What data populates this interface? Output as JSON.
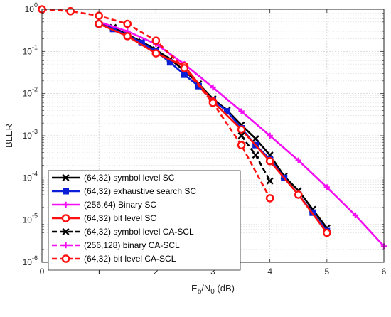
{
  "chart_data": {
    "type": "line",
    "x_scale": "linear",
    "y_scale": "log",
    "xlim": [
      0,
      6
    ],
    "ylim": [
      1e-06,
      1
    ],
    "xticks": [
      0,
      1,
      2,
      3,
      4,
      5,
      6
    ],
    "xtick_labels": [
      "0",
      "1",
      "2",
      "3",
      "4",
      "5",
      "6"
    ],
    "yticks": [
      1e-06,
      1e-05,
      0.0001,
      0.001,
      0.01,
      0.1,
      1
    ],
    "ytick_labels": [
      {
        "base": "10",
        "exp": "-6"
      },
      {
        "base": "10",
        "exp": "-5"
      },
      {
        "base": "10",
        "exp": "-4"
      },
      {
        "base": "10",
        "exp": "-3"
      },
      {
        "base": "10",
        "exp": "-2"
      },
      {
        "base": "10",
        "exp": "-1"
      },
      {
        "base": "10",
        "exp": "0"
      }
    ],
    "xlabel": {
      "main": "E",
      "sub1": "b",
      "mid": "/N",
      "sub2": "0",
      "tail": " (dB)"
    },
    "ylabel": "BLER",
    "grid": true,
    "legend_position": "bottom-left",
    "series": [
      {
        "name": "(64,32) symbol level SC",
        "color": "#000000",
        "dash": "solid",
        "marker": "x",
        "x": [
          1,
          1.25,
          1.5,
          1.75,
          2,
          2.25,
          2.5,
          2.75,
          3,
          3.25,
          3.5,
          3.75,
          4,
          4.25,
          4.5,
          4.75,
          5
        ],
        "y": [
          0.45,
          0.37,
          0.25,
          0.17,
          0.11,
          0.065,
          0.035,
          0.017,
          0.0075,
          0.004,
          0.0018,
          0.00085,
          0.00035,
          0.00011,
          5e-05,
          1.8e-05,
          6.5e-06
        ]
      },
      {
        "name": "(64,32) exhaustive search SC",
        "color": "#0a1fd6",
        "dash": "solid",
        "marker": "square",
        "x": [
          1,
          1.25,
          1.5,
          1.75,
          2,
          2.25,
          2.5,
          2.75,
          3,
          3.25,
          3.5,
          3.75,
          4,
          4.25,
          4.5,
          4.75,
          5
        ],
        "y": [
          0.45,
          0.34,
          0.24,
          0.16,
          0.1,
          0.055,
          0.028,
          0.015,
          0.007,
          0.0038,
          0.0015,
          0.0006,
          0.00028,
          0.0001,
          4e-05,
          1.5e-05,
          5.5e-06
        ]
      },
      {
        "name": "(256,64) Binary SC",
        "color": "#f210f2",
        "dash": "solid",
        "marker": "plus",
        "x": [
          1,
          1.5,
          2,
          2.5,
          3,
          3.5,
          4,
          4.5,
          5,
          5.5,
          6
        ],
        "y": [
          0.5,
          0.3,
          0.15,
          0.05,
          0.014,
          0.0038,
          0.001,
          0.00026,
          6e-05,
          1.3e-05,
          2.4e-06
        ]
      },
      {
        "name": "(64,32) bit level SC",
        "color": "#ff1010",
        "dash": "solid",
        "marker": "circle",
        "x": [
          1,
          1.5,
          2,
          2.5,
          3,
          3.5,
          4,
          4.5,
          5
        ],
        "y": [
          0.45,
          0.23,
          0.09,
          0.045,
          0.0065,
          0.0014,
          0.00025,
          4e-05,
          5e-06
        ]
      },
      {
        "name": "(64,32) symbol level CA-SCL",
        "color": "#000000",
        "dash": "dashed",
        "marker": "x",
        "x": [
          3.5,
          3.75,
          4
        ],
        "y": [
          0.001,
          0.00035,
          8.5e-05
        ]
      },
      {
        "name": "(256,128) binary CA-SCL",
        "color": "#f210f2",
        "dash": "dashed",
        "marker": "plus",
        "x": [],
        "y": []
      },
      {
        "name": "(64,32) bit level CA-SCL",
        "color": "#ff1010",
        "dash": "dashed",
        "marker": "circle",
        "x": [
          0,
          0.5,
          1,
          1.5,
          2,
          2.5,
          3,
          3.5,
          4
        ],
        "y": [
          1,
          0.9,
          0.7,
          0.45,
          0.18,
          0.04,
          0.006,
          0.0006,
          3.3e-05
        ]
      }
    ]
  }
}
